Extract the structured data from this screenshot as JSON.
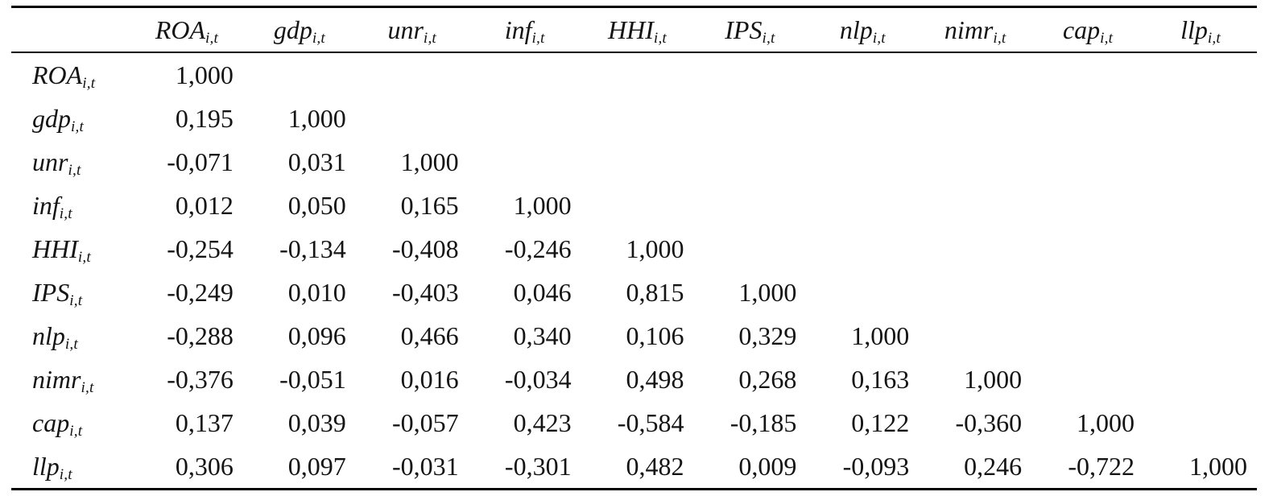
{
  "page": {
    "background": "#ffffff",
    "text_color": "#141414",
    "rule_color": "#000000"
  },
  "table": {
    "kind": "correlation-matrix",
    "corner_label": "",
    "subscript": "i,t",
    "columns": [
      {
        "name": "ROA",
        "sub": "i,t"
      },
      {
        "name": "gdp",
        "sub": "i,t"
      },
      {
        "name": "unr",
        "sub": "i,t"
      },
      {
        "name": "inf",
        "sub": "i,t"
      },
      {
        "name": "HHI",
        "sub": "i,t"
      },
      {
        "name": "IPS",
        "sub": "i,t"
      },
      {
        "name": "nlp",
        "sub": "i,t"
      },
      {
        "name": "nimr",
        "sub": "i,t"
      },
      {
        "name": "cap",
        "sub": "i,t"
      },
      {
        "name": "llp",
        "sub": "i,t"
      }
    ],
    "rows": [
      {
        "name": "ROA",
        "sub": "i,t",
        "values": [
          "1,000"
        ]
      },
      {
        "name": "gdp",
        "sub": "i,t",
        "values": [
          "0,195",
          "1,000"
        ]
      },
      {
        "name": "unr",
        "sub": "i,t",
        "values": [
          "-0,071",
          "0,031",
          "1,000"
        ]
      },
      {
        "name": "inf",
        "sub": "i,t",
        "values": [
          "0,012",
          "0,050",
          "0,165",
          "1,000"
        ]
      },
      {
        "name": "HHI",
        "sub": "i,t",
        "values": [
          "-0,254",
          "-0,134",
          "-0,408",
          "-0,246",
          "1,000"
        ]
      },
      {
        "name": "IPS",
        "sub": "i,t",
        "values": [
          "-0,249",
          "0,010",
          "-0,403",
          "0,046",
          "0,815",
          "1,000"
        ]
      },
      {
        "name": "nlp",
        "sub": "i,t",
        "values": [
          "-0,288",
          "0,096",
          "0,466",
          "0,340",
          "0,106",
          "0,329",
          "1,000"
        ]
      },
      {
        "name": "nimr",
        "sub": "i,t",
        "values": [
          "-0,376",
          "-0,051",
          "0,016",
          "-0,034",
          "0,498",
          "0,268",
          "0,163",
          "1,000"
        ]
      },
      {
        "name": "cap",
        "sub": "i,t",
        "values": [
          "0,137",
          "0,039",
          "-0,057",
          "0,423",
          "-0,584",
          "-0,185",
          "0,122",
          "-0,360",
          "1,000"
        ]
      },
      {
        "name": "llp",
        "sub": "i,t",
        "values": [
          "0,306",
          "0,097",
          "-0,031",
          "-0,301",
          "0,482",
          "0,009",
          "-0,093",
          "0,246",
          "-0,722",
          "1,000"
        ]
      }
    ]
  }
}
